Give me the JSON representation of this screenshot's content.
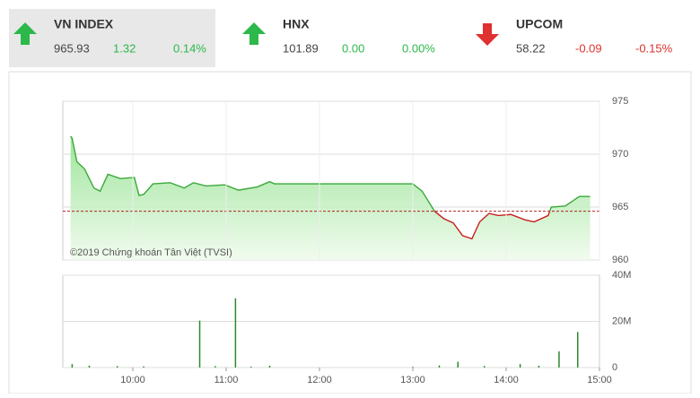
{
  "header": {
    "indices": [
      {
        "name": "VN INDEX",
        "value": "965.93",
        "change": "1.32",
        "change_pct": "0.14%",
        "direction": "up",
        "color": "#2db84b",
        "selected": true
      },
      {
        "name": "HNX",
        "value": "101.89",
        "change": "0.00",
        "change_pct": "0.00%",
        "direction": "up",
        "color": "#2db84b",
        "selected": false
      },
      {
        "name": "UPCOM",
        "value": "58.22",
        "change": "-0.09",
        "change_pct": "-0.15%",
        "direction": "down",
        "color": "#e03030",
        "selected": false
      }
    ]
  },
  "chart_data": [
    {
      "type": "line",
      "annotation": "©2019 Chứng khoán Tân Việt (TVSI)",
      "x": [
        560,
        561,
        564,
        569,
        575,
        579,
        584,
        592,
        601,
        604,
        607,
        613,
        624,
        633,
        639,
        647,
        659,
        668,
        680,
        688,
        691,
        780,
        786,
        794,
        800,
        806,
        812,
        818,
        823,
        829,
        835,
        843,
        852,
        858,
        867,
        869,
        878,
        887,
        894
      ],
      "values": [
        971.7,
        971.5,
        969.3,
        968.6,
        966.8,
        966.5,
        968.1,
        967.7,
        967.8,
        966.1,
        966.2,
        967.2,
        967.3,
        966.8,
        967.3,
        967,
        967.1,
        966.6,
        966.9,
        967.4,
        967.2,
        967.2,
        966.5,
        964.6,
        963.9,
        963.5,
        962.3,
        962.0,
        963.6,
        964.4,
        964.2,
        964.3,
        963.8,
        963.6,
        964.2,
        965.0,
        965.1,
        966.0,
        966.0
      ],
      "reference_line": 964.61,
      "color_above": "#3aa83a",
      "color_below": "#c81e1e",
      "reference_color": "#b22222",
      "xlim": [
        555,
        900
      ],
      "ylim": [
        960,
        975
      ],
      "yticks": [
        960,
        965,
        970,
        975
      ],
      "grid": true
    },
    {
      "type": "bar",
      "color": "#2a8a2a",
      "x": [
        561,
        572,
        590,
        607,
        643,
        653,
        666,
        676,
        688,
        780,
        797,
        809,
        826,
        849,
        861,
        874,
        886
      ],
      "values": [
        1500000,
        800000,
        600000,
        500000,
        20300000,
        600000,
        30000000,
        400000,
        800000,
        300000,
        900000,
        2500000,
        700000,
        1500000,
        800000,
        7000000,
        15400000
      ],
      "xlim": [
        555,
        900
      ],
      "ylim": [
        0,
        40000000
      ],
      "yticks": [
        0,
        {
          "value": 20000000,
          "label": "20M"
        },
        {
          "value": 40000000,
          "label": "40M"
        }
      ],
      "xticks": [
        {
          "value": 600,
          "label": "10:00"
        },
        {
          "value": 660,
          "label": "11:00"
        },
        {
          "value": 720,
          "label": "12:00"
        },
        {
          "value": 780,
          "label": "13:00"
        },
        {
          "value": 840,
          "label": "14:00"
        },
        {
          "value": 900,
          "label": "15:00"
        }
      ],
      "grid": true
    }
  ]
}
